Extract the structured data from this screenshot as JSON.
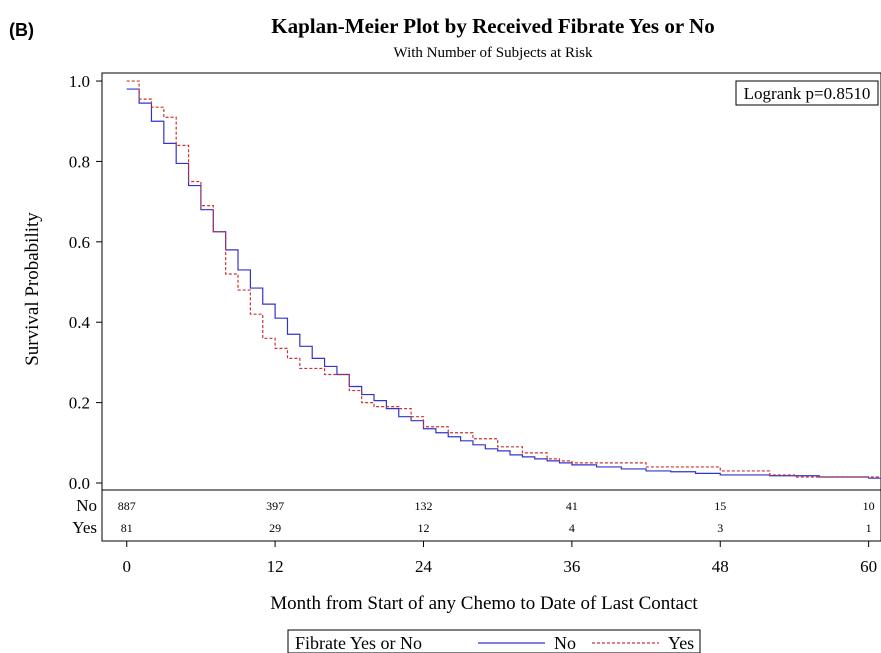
{
  "panel_label": "(B)",
  "chart_data": {
    "type": "line",
    "title": "Kaplan-Meier Plot by Received Fibrate Yes or No",
    "subtitle": "With Number of Subjects at Risk",
    "xlabel": "Month from Start of any Chemo to Date of Last Contact",
    "ylabel": "Survival Probability",
    "xlim": [
      -2,
      61
    ],
    "ylim": [
      0,
      1.02
    ],
    "x_ticks": [
      0,
      12,
      24,
      36,
      48,
      60
    ],
    "x_tick_labels": [
      "0",
      "12",
      "24",
      "36",
      "48",
      "60"
    ],
    "y_ticks": [
      0.0,
      0.2,
      0.4,
      0.6,
      0.8,
      1.0
    ],
    "y_tick_labels": [
      "0.0",
      "0.2",
      "0.4",
      "0.6",
      "0.8",
      "1.0"
    ],
    "annotation": "Logrank p=0.8510",
    "legend": {
      "title": "Fibrate Yes or No",
      "position": "bottom"
    },
    "series": [
      {
        "name": "No",
        "color": "#3333cc",
        "dash": "solid",
        "x": [
          0,
          1,
          2,
          3,
          4,
          5,
          6,
          7,
          8,
          9,
          10,
          11,
          12,
          13,
          14,
          15,
          16,
          17,
          18,
          19,
          20,
          21,
          22,
          23,
          24,
          25,
          26,
          27,
          28,
          29,
          30,
          31,
          32,
          33,
          34,
          35,
          36,
          38,
          40,
          42,
          44,
          46,
          48,
          52,
          56,
          60
        ],
        "y": [
          0.98,
          0.945,
          0.9,
          0.845,
          0.795,
          0.74,
          0.68,
          0.625,
          0.58,
          0.53,
          0.485,
          0.445,
          0.41,
          0.37,
          0.34,
          0.31,
          0.29,
          0.27,
          0.24,
          0.22,
          0.205,
          0.185,
          0.165,
          0.155,
          0.135,
          0.125,
          0.115,
          0.105,
          0.095,
          0.085,
          0.08,
          0.07,
          0.065,
          0.06,
          0.055,
          0.05,
          0.045,
          0.04,
          0.035,
          0.03,
          0.028,
          0.024,
          0.02,
          0.018,
          0.015,
          0.012
        ]
      },
      {
        "name": "Yes",
        "color": "#cc3333",
        "dash": "dashed",
        "x": [
          0,
          1,
          2,
          3,
          4,
          5,
          6,
          7,
          8,
          9,
          10,
          11,
          12,
          13,
          14,
          16,
          18,
          19,
          20,
          22,
          23,
          24,
          26,
          28,
          30,
          32,
          34,
          35,
          36,
          42,
          48,
          52,
          54,
          60
        ],
        "y": [
          1.0,
          0.955,
          0.935,
          0.91,
          0.84,
          0.75,
          0.69,
          0.625,
          0.52,
          0.48,
          0.42,
          0.36,
          0.335,
          0.31,
          0.285,
          0.27,
          0.23,
          0.2,
          0.19,
          0.185,
          0.165,
          0.14,
          0.125,
          0.11,
          0.09,
          0.075,
          0.06,
          0.055,
          0.05,
          0.04,
          0.03,
          0.02,
          0.015,
          0.015
        ]
      }
    ],
    "risk_table": {
      "x": [
        0,
        12,
        24,
        36,
        48,
        60
      ],
      "rows": [
        {
          "label": "No",
          "values": [
            "887",
            "397",
            "132",
            "41",
            "15",
            "10"
          ]
        },
        {
          "label": "Yes",
          "values": [
            "81",
            "29",
            "12",
            "4",
            "3",
            "1"
          ]
        }
      ]
    }
  }
}
